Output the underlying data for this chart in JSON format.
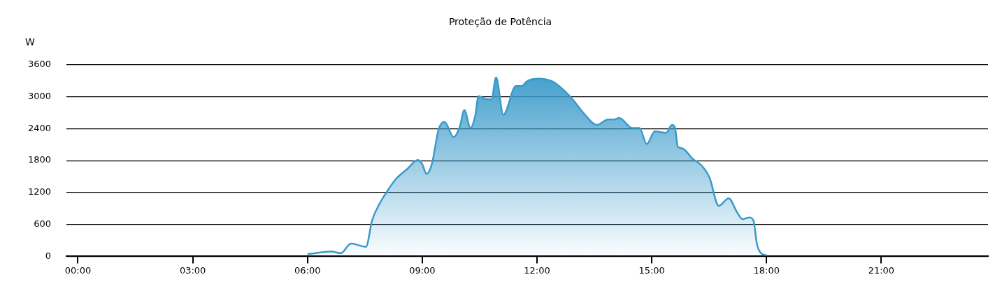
{
  "chart_data": {
    "type": "area",
    "title": "Proteção de Potência",
    "ylabel": "W",
    "x": [
      6.0,
      6.63,
      6.87,
      7.14,
      7.53,
      7.69,
      7.87,
      8.08,
      8.32,
      8.59,
      8.89,
      9.0,
      9.11,
      9.25,
      9.43,
      9.58,
      9.82,
      9.98,
      10.1,
      10.26,
      10.39,
      10.47,
      10.64,
      10.81,
      10.93,
      11.12,
      11.45,
      11.6,
      11.72,
      11.83,
      12.05,
      12.39,
      12.69,
      12.93,
      13.23,
      13.56,
      13.86,
      14.01,
      14.15,
      14.49,
      14.68,
      14.87,
      15.08,
      15.37,
      15.53,
      15.61,
      15.68,
      15.79,
      16.09,
      16.3,
      16.51,
      16.75,
      17.01,
      17.23,
      17.37,
      17.55,
      17.66,
      17.75,
      17.84,
      17.99
    ],
    "series": [
      {
        "color": "#3a9ac9",
        "values": [
          40,
          90,
          60,
          240,
          180,
          680,
          970,
          1220,
          1460,
          1630,
          1810,
          1730,
          1550,
          1730,
          2390,
          2530,
          2240,
          2430,
          2750,
          2410,
          2660,
          3010,
          2960,
          2950,
          3360,
          2660,
          3200,
          3200,
          3280,
          3320,
          3340,
          3290,
          3130,
          2950,
          2680,
          2470,
          2570,
          2570,
          2600,
          2410,
          2410,
          2110,
          2350,
          2320,
          2470,
          2410,
          2060,
          2030,
          1820,
          1710,
          1480,
          950,
          1090,
          830,
          700,
          730,
          670,
          230,
          70,
          20
        ]
      }
    ],
    "xlim": [
      -0.3,
      23.79
    ],
    "xticks": [
      {
        "value": 0,
        "label": "00:00"
      },
      {
        "value": 3,
        "label": "03:00"
      },
      {
        "value": 6,
        "label": "06:00"
      },
      {
        "value": 9,
        "label": "09:00"
      },
      {
        "value": 12,
        "label": "12:00"
      },
      {
        "value": 15,
        "label": "15:00"
      },
      {
        "value": 18,
        "label": "18:00"
      },
      {
        "value": 21,
        "label": "21:00"
      }
    ],
    "ylim": [
      0,
      3600
    ],
    "yticks": [
      0,
      600,
      1200,
      1800,
      2400,
      3000,
      3600
    ],
    "grid": "y",
    "legend": false,
    "marker": "none",
    "line_style": "solid"
  }
}
